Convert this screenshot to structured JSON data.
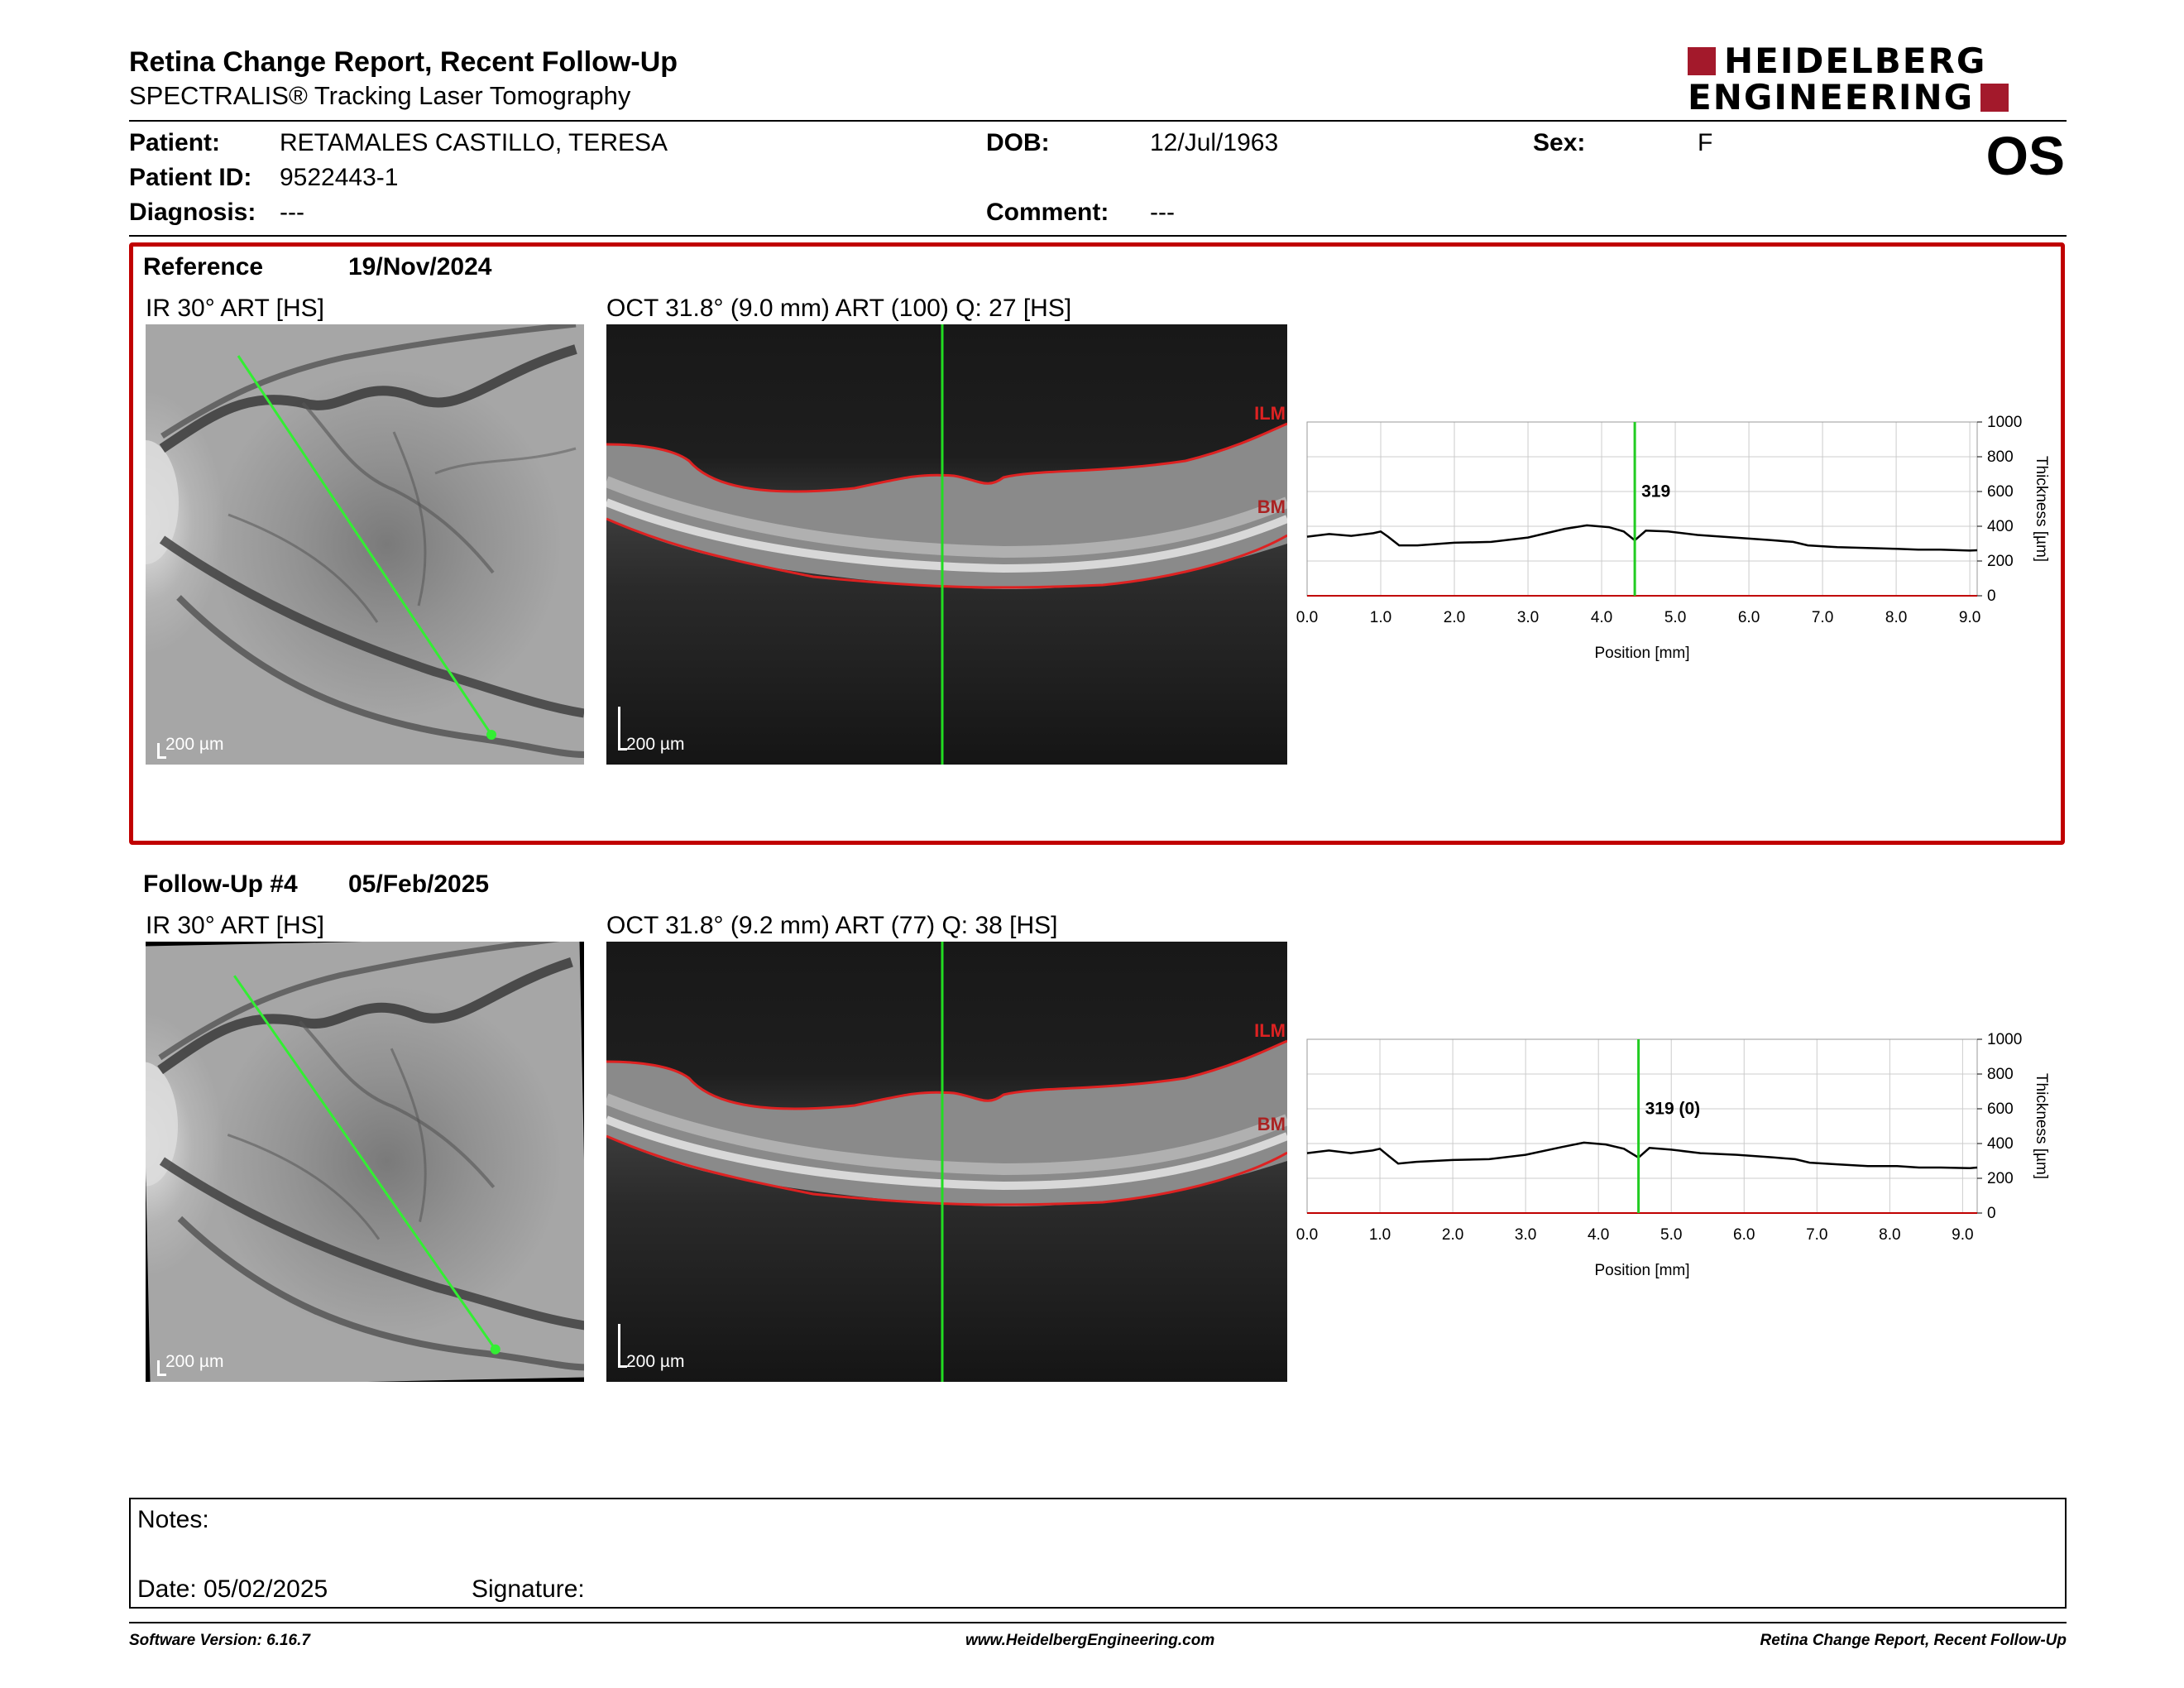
{
  "report": {
    "title": "Retina Change Report, Recent Follow-Up",
    "subtitle": "SPECTRALIS® Tracking Laser Tomography",
    "logo_line1": "HEIDELBERG",
    "logo_line2": "ENGINEERING",
    "brand_color": "#a3192b"
  },
  "patient": {
    "patient_label": "Patient:",
    "patient_value": "RETAMALES CASTILLO, TERESA",
    "id_label": "Patient ID:",
    "id_value": "9522443-1",
    "diagnosis_label": "Diagnosis:",
    "diagnosis_value": "---",
    "dob_label": "DOB:",
    "dob_value": "12/Jul/1963",
    "comment_label": "Comment:",
    "comment_value": "---",
    "sex_label": "Sex:",
    "sex_value": "F",
    "eye": "OS"
  },
  "reference": {
    "label": "Reference",
    "date": "19/Nov/2024",
    "ir_caption": "IR 30° ART [HS]",
    "oct_caption": "OCT 31.8° (9.0 mm) ART (100) Q: 27 [HS]",
    "scale_ir": "200 µm",
    "scale_oct": "200 µm",
    "ilm_label": "ILM",
    "bm_label": "BM"
  },
  "followup": {
    "label": "Follow-Up #4",
    "date": "05/Feb/2025",
    "ir_caption": "IR 30° ART [HS]",
    "oct_caption": "OCT 31.8° (9.2 mm) ART (77) Q: 38 [HS]",
    "scale_ir": "200 µm",
    "scale_oct": "200 µm",
    "ilm_label": "ILM",
    "bm_label": "BM"
  },
  "chart_data": [
    {
      "type": "line",
      "xlabel": "Position [mm]",
      "ylabel": "Thickness [µm]",
      "xlim": [
        0,
        9.1
      ],
      "ylim": [
        0,
        1000
      ],
      "x_ticks": [
        "0.0",
        "1.0",
        "2.0",
        "3.0",
        "4.0",
        "5.0",
        "6.0",
        "7.0",
        "8.0",
        "9.0"
      ],
      "y_ticks": [
        "0",
        "200",
        "400",
        "600",
        "800",
        "1000"
      ],
      "marker_x": 4.45,
      "marker_label": "319",
      "grid": true,
      "line_color": "#000000",
      "marker_color": "#22cc22",
      "x": [
        0.0,
        0.3,
        0.6,
        0.9,
        1.0,
        1.1,
        1.25,
        1.5,
        2.0,
        2.5,
        3.0,
        3.5,
        3.8,
        4.1,
        4.3,
        4.45,
        4.6,
        4.9,
        5.3,
        5.8,
        6.3,
        6.6,
        6.8,
        7.2,
        7.6,
        8.0,
        8.3,
        8.6,
        9.0,
        9.1
      ],
      "y": [
        340,
        355,
        345,
        360,
        370,
        340,
        290,
        290,
        305,
        310,
        335,
        385,
        405,
        395,
        370,
        319,
        375,
        370,
        350,
        335,
        320,
        310,
        290,
        280,
        275,
        270,
        265,
        265,
        260,
        262
      ]
    },
    {
      "type": "line",
      "xlabel": "Position [mm]",
      "ylabel": "Thickness [µm]",
      "xlim": [
        0,
        9.2
      ],
      "ylim": [
        0,
        1000
      ],
      "x_ticks": [
        "0.0",
        "1.0",
        "2.0",
        "3.0",
        "4.0",
        "5.0",
        "6.0",
        "7.0",
        "8.0",
        "9.0"
      ],
      "y_ticks": [
        "0",
        "200",
        "400",
        "600",
        "800",
        "1000"
      ],
      "marker_x": 4.55,
      "marker_label": "319 (0)",
      "grid": true,
      "line_color": "#000000",
      "marker_color": "#22cc22",
      "x": [
        0.0,
        0.3,
        0.6,
        0.9,
        1.0,
        1.1,
        1.25,
        1.5,
        2.0,
        2.5,
        3.0,
        3.5,
        3.8,
        4.1,
        4.35,
        4.55,
        4.7,
        5.0,
        5.4,
        5.9,
        6.4,
        6.7,
        6.9,
        7.3,
        7.7,
        8.1,
        8.4,
        8.7,
        9.1,
        9.2
      ],
      "y": [
        345,
        360,
        345,
        360,
        370,
        335,
        285,
        295,
        305,
        310,
        335,
        380,
        405,
        395,
        370,
        319,
        375,
        365,
        345,
        335,
        320,
        310,
        290,
        280,
        270,
        270,
        262,
        262,
        258,
        262
      ]
    }
  ],
  "notes": {
    "notes_label": "Notes:",
    "date_label": "Date: 05/02/2025",
    "signature_label": "Signature:"
  },
  "footer": {
    "software": "Software Version: 6.16.7",
    "website": "www.HeidelbergEngineering.com",
    "report_name": "Retina Change Report, Recent Follow-Up"
  }
}
